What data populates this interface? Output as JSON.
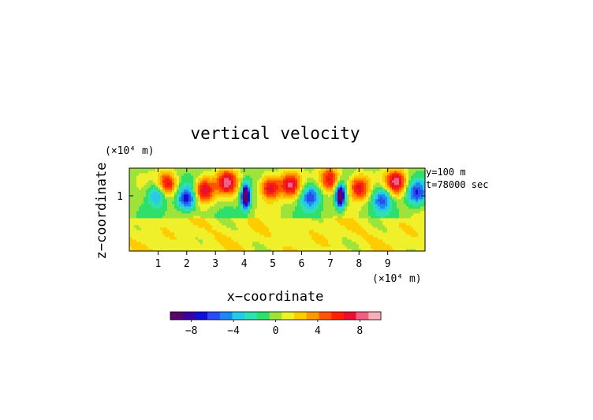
{
  "chart_data": {
    "type": "heatmap",
    "title": "vertical velocity",
    "xlabel": "x−coordinate",
    "ylabel": "z−coordinate",
    "x_unit": "(×10⁴ m)",
    "z_unit": "(×10⁴ m)",
    "annotations": [
      "y=100  m",
      "t=78000  sec"
    ],
    "x_range": [
      0,
      10.3
    ],
    "z_range": [
      0,
      1.5
    ],
    "x_ticks": [
      "1",
      "2",
      "3",
      "4",
      "5",
      "6",
      "7",
      "8",
      "9"
    ],
    "z_ticks": [
      "1"
    ],
    "colorbar": {
      "range": [
        -10,
        10
      ],
      "ticks": [
        "−8",
        "−4",
        "0",
        "4",
        "8"
      ],
      "tick_values": [
        -8,
        -4,
        0,
        4,
        8
      ],
      "colors": [
        "#5b006e",
        "#3c00a0",
        "#1010d0",
        "#2a4cf0",
        "#1e88f0",
        "#28c8e8",
        "#30e0b0",
        "#2ee06a",
        "#9de33a",
        "#f0f02a",
        "#ffcc00",
        "#ff9900",
        "#ff5500",
        "#ff2200",
        "#e81030",
        "#f06080",
        "#f8b0b8"
      ]
    },
    "features": [
      {
        "sign": "neg",
        "x": 1.0,
        "z": 1.05,
        "amp": 6.0
      },
      {
        "sign": "pos",
        "x": 1.3,
        "z": 1.2,
        "amp": 8.0
      },
      {
        "sign": "neg",
        "x": 2.0,
        "z": 0.95,
        "amp": 7.0
      },
      {
        "sign": "pos",
        "x": 2.6,
        "z": 1.1,
        "amp": 8.0
      },
      {
        "sign": "pos",
        "x": 3.4,
        "z": 1.25,
        "amp": 7.5
      },
      {
        "sign": "neg",
        "x": 4.05,
        "z": 1.0,
        "amp": 12.0
      },
      {
        "sign": "pos",
        "x": 4.9,
        "z": 1.15,
        "amp": 8.0
      },
      {
        "sign": "pos",
        "x": 5.6,
        "z": 1.2,
        "amp": 7.5
      },
      {
        "sign": "neg",
        "x": 6.3,
        "z": 1.0,
        "amp": 6.5
      },
      {
        "sign": "neg",
        "x": 7.35,
        "z": 1.0,
        "amp": 12.0
      },
      {
        "sign": "pos",
        "x": 7.0,
        "z": 1.3,
        "amp": 7.0
      },
      {
        "sign": "pos",
        "x": 8.0,
        "z": 1.15,
        "amp": 7.5
      },
      {
        "sign": "neg",
        "x": 8.8,
        "z": 0.95,
        "amp": 6.0
      },
      {
        "sign": "pos",
        "x": 9.3,
        "z": 1.25,
        "amp": 8.0
      },
      {
        "sign": "neg",
        "x": 10.0,
        "z": 1.05,
        "amp": 6.0
      }
    ]
  }
}
